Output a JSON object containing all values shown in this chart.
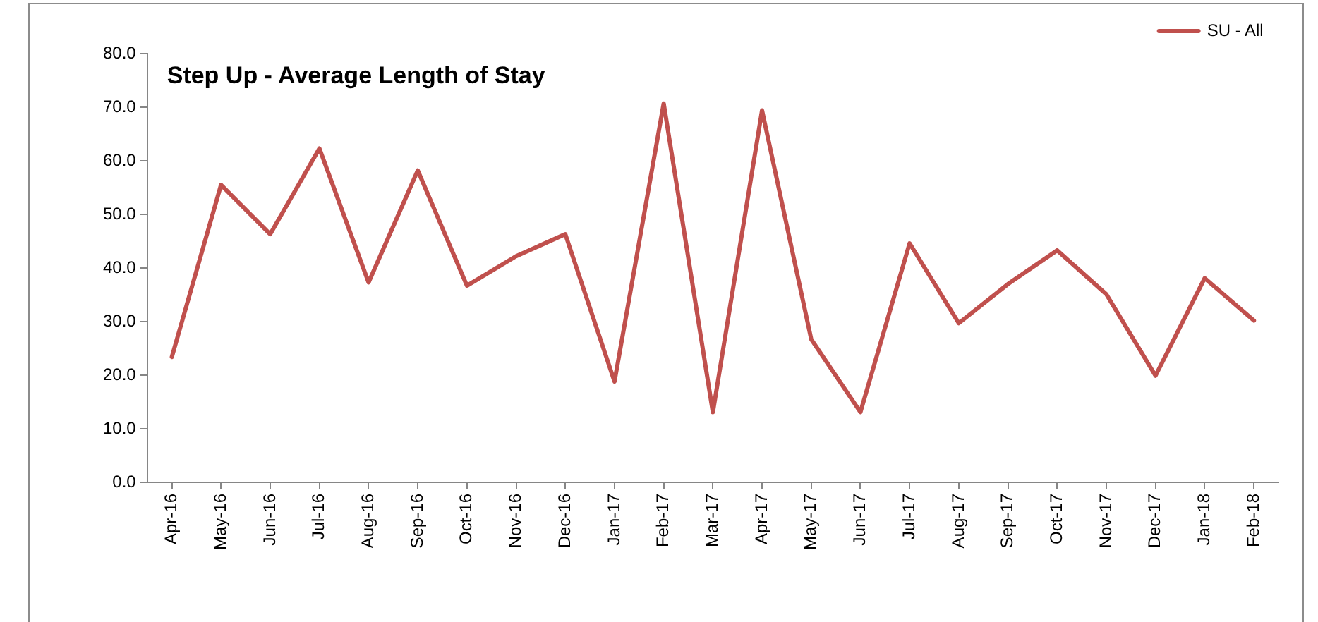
{
  "chart_data": {
    "type": "line",
    "title": "Step Up - Average Length of Stay",
    "categories": [
      "Apr-16",
      "May-16",
      "Jun-16",
      "Jul-16",
      "Aug-16",
      "Sep-16",
      "Oct-16",
      "Nov-16",
      "Dec-16",
      "Jan-17",
      "Feb-17",
      "Mar-17",
      "Apr-17",
      "May-17",
      "Jun-17",
      "Jul-17",
      "Aug-17",
      "Sep-17",
      "Oct-17",
      "Nov-17",
      "Dec-17",
      "Jan-18",
      "Feb-18"
    ],
    "series": [
      {
        "name": "SU - All",
        "color": "#c0504d",
        "values": [
          23.4,
          55.5,
          46.3,
          62.3,
          37.3,
          58.2,
          36.7,
          42.2,
          46.3,
          18.8,
          70.7,
          13.1,
          69.4,
          26.7,
          13.1,
          44.6,
          29.7,
          37.0,
          43.3,
          35.1,
          19.9,
          38.1,
          30.2
        ]
      }
    ],
    "ylim": [
      0,
      80
    ],
    "yticks": [
      {
        "value": 0,
        "label": "0.0"
      },
      {
        "value": 10,
        "label": "10.0"
      },
      {
        "value": 20,
        "label": "20.0"
      },
      {
        "value": 30,
        "label": "30.0"
      },
      {
        "value": 40,
        "label": "40.0"
      },
      {
        "value": 50,
        "label": "50.0"
      },
      {
        "value": 60,
        "label": "60.0"
      },
      {
        "value": 70,
        "label": "70.0"
      },
      {
        "value": 80,
        "label": "80.0"
      }
    ],
    "grid": false,
    "legend": "top right",
    "marker": "none",
    "line_style": "solid"
  }
}
